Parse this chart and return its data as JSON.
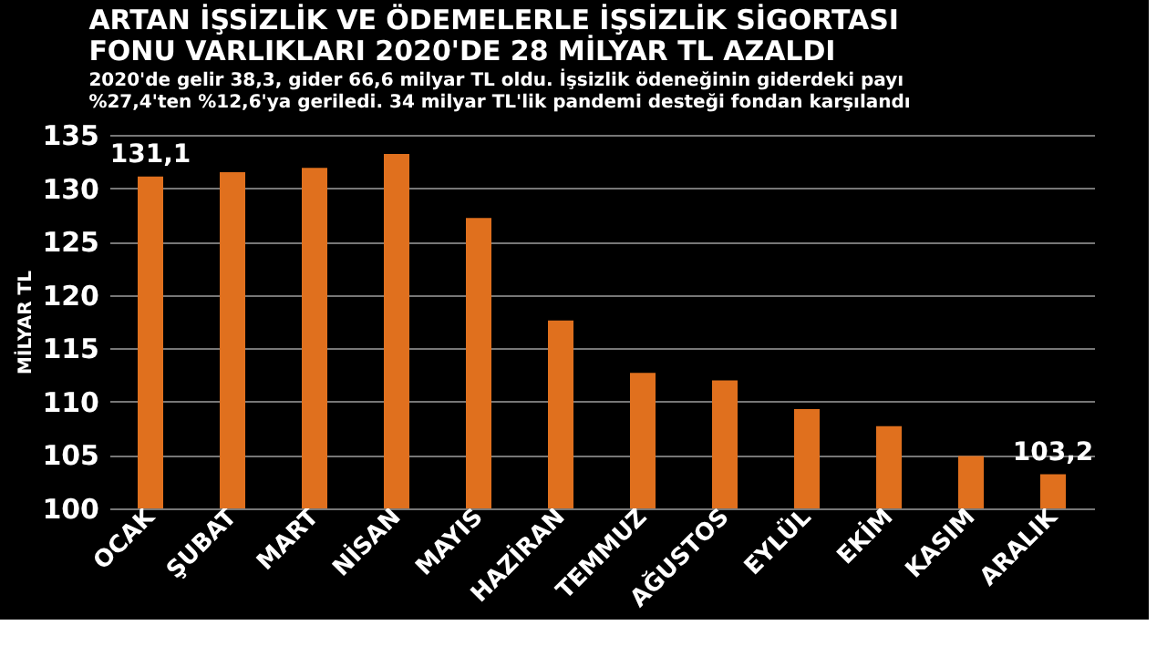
{
  "chart_data": {
    "type": "bar",
    "title": [
      "ARTAN İŞSİZLİK VE ÖDEMELERLE İŞSİZLİK SİGORTASI",
      "FONU VARLIKLARI 2020'DE 28 MİLYAR TL AZALDI"
    ],
    "subtitle": [
      "2020'de gelir 38,3, gider 66,6 milyar TL oldu. İşsizlik ödeneğinin giderdeki payı",
      "%27,4'ten %12,6'ya geriledi. 34 milyar TL'lik pandemi desteği fondan karşılandı"
    ],
    "ylabel": "MİLYAR TL",
    "categories": [
      "OCAK",
      "ŞUBAT",
      "MART",
      "NİSAN",
      "MAYIS",
      "HAZİRAN",
      "TEMMUZ",
      "AĞUSTOS",
      "EYLÜL",
      "EKİM",
      "KASIM",
      "ARALIK"
    ],
    "values": [
      131.1,
      131.5,
      131.9,
      133.2,
      127.2,
      117.6,
      112.7,
      112.0,
      109.3,
      107.7,
      104.9,
      103.2
    ],
    "value_labels": [
      "131,1",
      null,
      null,
      null,
      null,
      null,
      null,
      null,
      null,
      null,
      null,
      "103,2"
    ],
    "color": "#e0701e",
    "ylim": [
      100,
      135
    ],
    "yticks": [
      100,
      105,
      110,
      115,
      120,
      125,
      130,
      135
    ],
    "grid": "y"
  }
}
